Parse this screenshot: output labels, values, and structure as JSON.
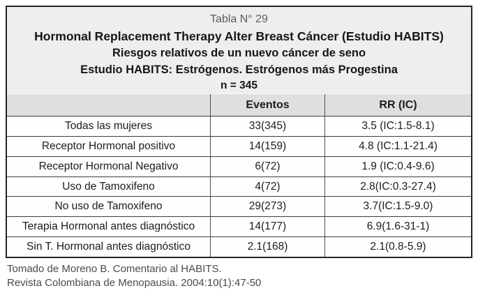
{
  "title_block": {
    "table_number": "Tabla N° 29",
    "title": "Hormonal Replacement Therapy Alter Breast Cáncer (Estudio HABITS)",
    "subtitle1": "Riesgos relativos de un nuevo cáncer de seno",
    "subtitle2": "Estudio HABITS: Estrógenos. Estrógenos más Progestina",
    "n_label": "n = 345"
  },
  "table": {
    "columns": [
      "",
      "Eventos",
      "RR (IC)"
    ],
    "rows": [
      {
        "label": "Todas las mujeres",
        "eventos": "33(345)",
        "rr": "3.5 (IC:1.5-8.1)"
      },
      {
        "label": "Receptor Hormonal positivo",
        "eventos": "14(159)",
        "rr": "4.8 (IC:1.1-21.4)"
      },
      {
        "label": "Receptor Hormonal Negativo",
        "eventos": "6(72)",
        "rr": "1.9 (IC:0.4-9.6)"
      },
      {
        "label": "Uso de Tamoxifeno",
        "eventos": "4(72)",
        "rr": "2.8(IC:0.3-27.4)"
      },
      {
        "label": "No uso de Tamoxifeno",
        "eventos": "29(273)",
        "rr": "3.7(IC:1.5-9.0)"
      },
      {
        "label": "Terapia Hormonal antes diagnóstico",
        "eventos": "14(177)",
        "rr": "6.9(1.6-31-1)"
      },
      {
        "label": "Sin T. Hormonal antes diagnóstico",
        "eventos": "2.1(168)",
        "rr": "2.1(0.8-5.9)"
      }
    ]
  },
  "footer": {
    "line1": "Tomado de Moreno B. Comentario al HABITS.",
    "line2": "Revista Colombiana de Menopausia. 2004:10(1):47-50"
  },
  "colors": {
    "outer_border": "#242424",
    "title_background": "#edefee",
    "header_row_background": "#dfdfde",
    "row_background": "#fefefe",
    "text": "#1c1c1c",
    "muted_text": "#4a4a4a"
  }
}
